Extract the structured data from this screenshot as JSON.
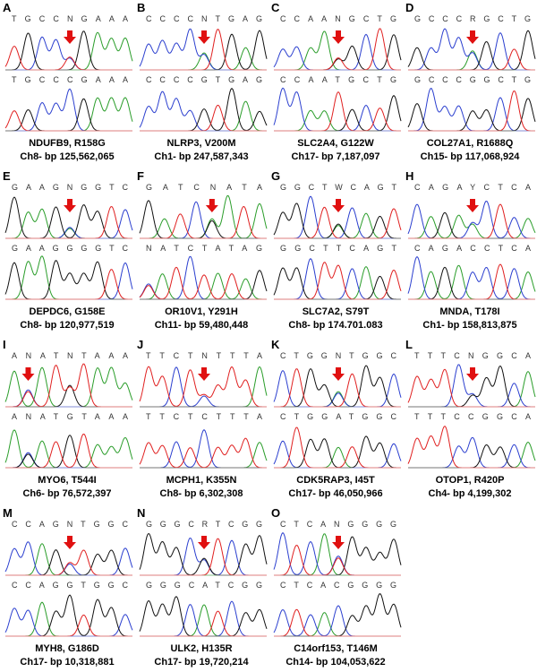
{
  "panels": [
    {
      "letter": "A",
      "top": "TGCCNGAAA",
      "bottom": "TGCCCGAAA",
      "gene": "NDUFB9, R158G",
      "location": "Ch8- bp 125,562,065"
    },
    {
      "letter": "B",
      "top": "CCCCNTGAG",
      "bottom": "CCCCGTGAG",
      "gene": "NLRP3, V200M",
      "location": "Ch1- bp 247,587,343"
    },
    {
      "letter": "C",
      "top": "CCAANGCTG",
      "bottom": "CCAATGCTG",
      "gene": "SLC2A4, G122W",
      "location": "Ch17- bp 7,187,097"
    },
    {
      "letter": "D",
      "top": "GCCCRGCTG",
      "bottom": "GCCCGGCTG",
      "gene": "COL27A1, R1688Q",
      "location": "Ch15- bp 117,068,924"
    },
    {
      "letter": "E",
      "top": "GAAGNGGTC",
      "bottom": "GAAGGGGTC",
      "gene": "DEPDC6, G158E",
      "location": "Ch8- bp 120,977,519"
    },
    {
      "letter": "F",
      "top": "GATCNATA",
      "bottom": "NATCTATAG",
      "gene": "OR10V1, Y291H",
      "location": "Ch11- bp 59,480,448"
    },
    {
      "letter": "G",
      "top": "GGCTWCAGT",
      "bottom": "GGCTTCAGT",
      "gene": "SLC7A2, S79T",
      "location": "Ch8- bp 174.701.083"
    },
    {
      "letter": "H",
      "top": "CAGAYCTCA",
      "bottom": "CAGACCTCA",
      "gene": "MNDA, T178I",
      "location": "Ch1- bp 158,813,875"
    },
    {
      "letter": "I",
      "top": "ANATNTAAA",
      "bottom": "ANATGTAAA",
      "gene": "MYO6, T544I",
      "location": "Ch6- bp 76,572,397"
    },
    {
      "letter": "J",
      "top": "TTCTNTTTA",
      "bottom": "TTCTCTTTA",
      "gene": "MCPH1, K355N",
      "location": "Ch8- bp 6,302,308"
    },
    {
      "letter": "K",
      "top": "CTGGNTGGC",
      "bottom": "CTGGATGGC",
      "gene": "CDK5RAP3, I45T",
      "location": "Ch17- bp 46,050,966"
    },
    {
      "letter": "L",
      "top": "TTTCNGGCA",
      "bottom": "TTTCCGGCA",
      "gene": "OTOP1, R420P",
      "location": "Ch4- bp 4,199,302"
    },
    {
      "letter": "M",
      "top": "CCAGNTGGC",
      "bottom": "CCAGGTGGC",
      "gene": "MYH8, G186D",
      "location": "Ch17- bp 10,318,881"
    },
    {
      "letter": "N",
      "top": "GGGCRTCGG",
      "bottom": "GGGCATCGG",
      "gene": "ULK2, H135R",
      "location": "Ch17- bp 19,720,214"
    },
    {
      "letter": "O",
      "top": "CTCANGGGG",
      "bottom": "CTCACGGGG",
      "gene": "C14orf153, T146M",
      "location": "Ch14- bp 104,053,622"
    }
  ]
}
